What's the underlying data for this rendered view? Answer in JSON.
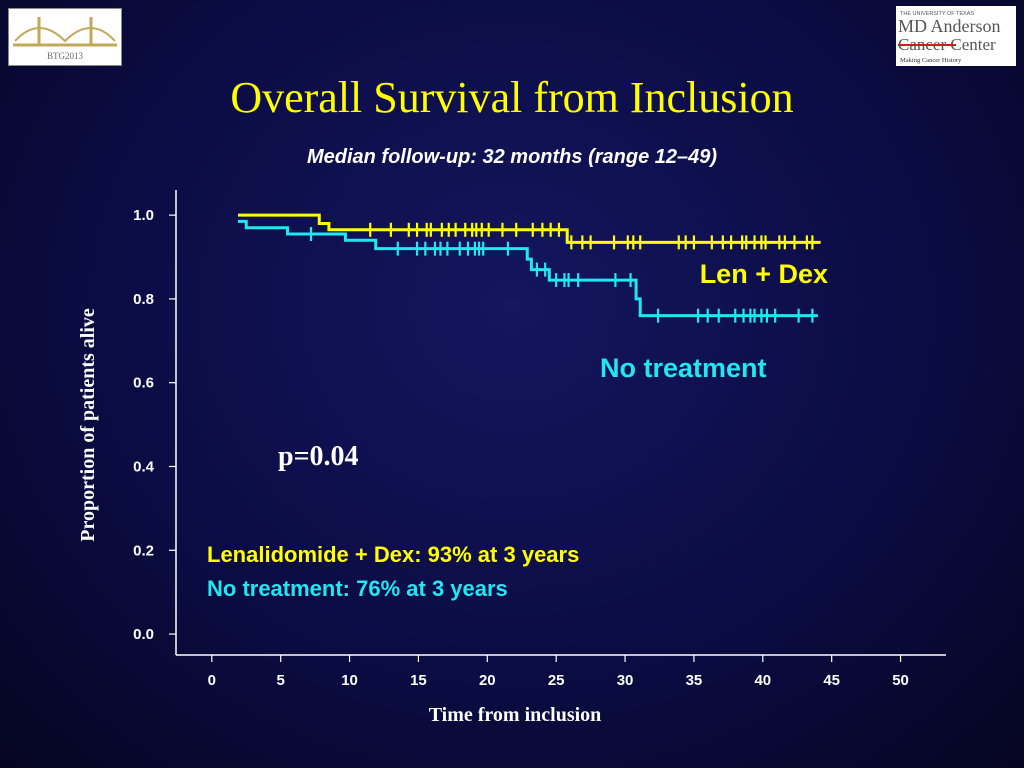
{
  "logos": {
    "left_text": "BTG2013",
    "right_line1": "THE UNIVERSITY OF TEXAS",
    "right_line2": "MD Anderson",
    "right_line3": "Cancer Center",
    "right_tagline": "Making Cancer History"
  },
  "title": "Overall Survival from Inclusion",
  "subtitle": "Median follow-up: 32 months (range 12–49)",
  "colors": {
    "len_dex": "#ffff00",
    "no_treatment": "#22e6f0",
    "axis": "#ffffff",
    "background": "#0b0c44"
  },
  "chart_data": {
    "type": "line",
    "subtype": "kaplan-meier step plot",
    "xlabel": "Time from inclusion",
    "ylabel": "Proportion of patients alive",
    "xlim": [
      -2.6,
      53.3
    ],
    "ylim": [
      -0.05,
      1.06
    ],
    "xticks": [
      0,
      5,
      10,
      15,
      20,
      25,
      30,
      35,
      40,
      45,
      50
    ],
    "yticks": [
      "0.0",
      "0.2",
      "0.4",
      "0.6",
      "0.8",
      "1.0"
    ],
    "ytick_values": [
      0,
      0.2,
      0.4,
      0.6,
      0.8,
      1.0
    ],
    "grid": false,
    "series": [
      {
        "name": "Len + Dex",
        "color": "#ffff00",
        "steps": [
          [
            1.9,
            1.0
          ],
          [
            7.8,
            0.98
          ],
          [
            8.5,
            0.965
          ],
          [
            25.8,
            0.935
          ],
          [
            44.2,
            0.935
          ]
        ],
        "censor_times": [
          11.5,
          13,
          14.3,
          14.9,
          15.6,
          15.9,
          16.7,
          17.2,
          17.7,
          18.4,
          18.9,
          19.2,
          19.6,
          20.1,
          21.1,
          22.1,
          23.3,
          24,
          24.6,
          25.2,
          26.1,
          26.9,
          27.5,
          29.2,
          30.2,
          30.6,
          31.1,
          33.9,
          34.4,
          35,
          36.3,
          37.1,
          37.7,
          38.5,
          38.8,
          39.4,
          39.9,
          40.2,
          41.2,
          41.6,
          42.3,
          43.2,
          43.6
        ]
      },
      {
        "name": "No treatment",
        "color": "#22e6f0",
        "steps": [
          [
            1.9,
            0.985
          ],
          [
            2.5,
            0.97
          ],
          [
            5.5,
            0.955
          ],
          [
            9.7,
            0.94
          ],
          [
            11.9,
            0.92
          ],
          [
            22.9,
            0.895
          ],
          [
            23.2,
            0.87
          ],
          [
            24.5,
            0.845
          ],
          [
            30.8,
            0.8
          ],
          [
            31.1,
            0.76
          ],
          [
            44.0,
            0.76
          ]
        ],
        "censor_times": [
          7.2,
          13.5,
          14.9,
          15.5,
          16.2,
          16.6,
          17.1,
          18,
          18.6,
          19.1,
          19.4,
          19.7,
          21.5,
          23.6,
          24.2,
          25,
          25.6,
          25.9,
          26.6,
          29.3,
          30.4,
          32.4,
          35.3,
          36,
          36.8,
          38,
          38.6,
          39.1,
          39.4,
          39.9,
          40.3,
          40.9,
          42.6,
          43.6
        ]
      }
    ],
    "annotations": {
      "pvalue": "p=0.04",
      "legend_len_dex": "Len + Dex",
      "legend_no_treatment": "No treatment",
      "summary_len_dex": "Lenalidomide + Dex: 93% at 3 years",
      "summary_no_treatment": "No treatment: 76% at 3 years"
    }
  }
}
